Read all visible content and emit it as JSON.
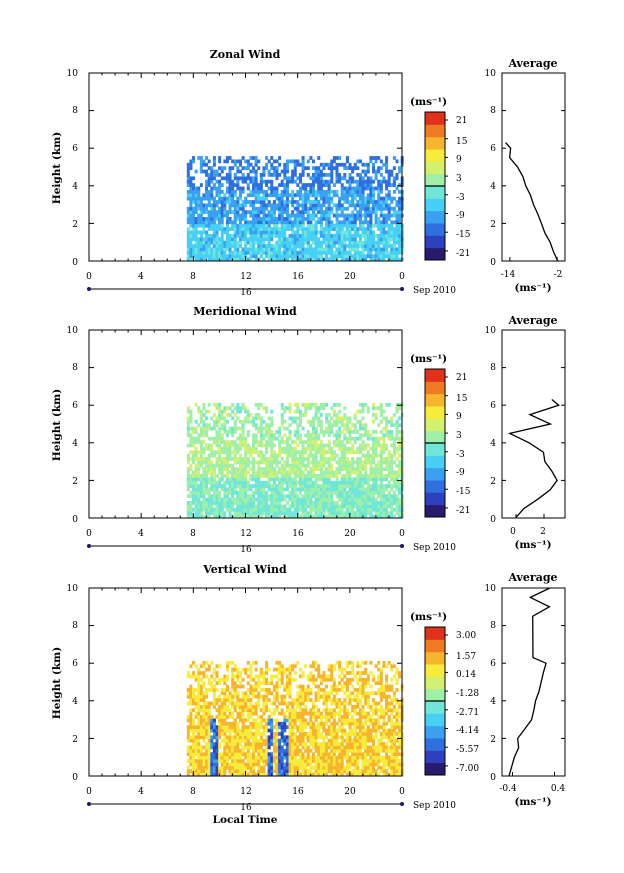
{
  "panels": [
    {
      "title": "Zonal Wind",
      "ylabel": "Height (km)",
      "yticks": [
        "0",
        "2",
        "4",
        "6",
        "8",
        "10"
      ],
      "xticks": [
        "0",
        "4",
        "8",
        "12",
        "16",
        "20",
        "0"
      ],
      "date_day": "16",
      "date_label": "Sep 2010",
      "cbar_unit": "(ms⁻¹)",
      "cbar_ticks": [
        "21",
        "15",
        "9",
        "3",
        "-3",
        "-9",
        "-15",
        "-21"
      ],
      "avg_title": "Average",
      "avg_yticks": [
        "0",
        "2",
        "4",
        "6",
        "8",
        "10"
      ],
      "avg_xticks": [
        "-14",
        "-2"
      ],
      "avg_xlabel": "(ms⁻¹)"
    },
    {
      "title": "Meridional Wind",
      "ylabel": "Height (km)",
      "yticks": [
        "0",
        "2",
        "4",
        "6",
        "8",
        "10"
      ],
      "xticks": [
        "0",
        "4",
        "8",
        "12",
        "16",
        "20",
        "0"
      ],
      "date_day": "16",
      "date_label": "Sep 2010",
      "cbar_unit": "(ms⁻¹)",
      "cbar_ticks": [
        "21",
        "15",
        "9",
        "3",
        "-3",
        "-9",
        "-15",
        "-21"
      ],
      "avg_title": "Average",
      "avg_yticks": [
        "0",
        "2",
        "4",
        "6",
        "8",
        "10"
      ],
      "avg_xticks": [
        "0",
        "2"
      ],
      "avg_xlabel": "(ms⁻¹)"
    },
    {
      "title": "Vertical Wind",
      "ylabel": "Height (km)",
      "yticks": [
        "0",
        "2",
        "4",
        "6",
        "8",
        "10"
      ],
      "xticks": [
        "0",
        "4",
        "8",
        "12",
        "16",
        "20",
        "0"
      ],
      "date_day": "16",
      "date_label": "Sep 2010",
      "cbar_unit": "(ms⁻¹)",
      "cbar_ticks": [
        "3.00",
        "1.57",
        "0.14",
        "-1.28",
        "-2.71",
        "-4.14",
        "-5.57",
        "-7.00"
      ],
      "avg_title": "Average",
      "avg_yticks": [
        "0",
        "2",
        "4",
        "6",
        "8",
        "10"
      ],
      "avg_xticks": [
        "-0.4",
        "0.4"
      ],
      "avg_xlabel": "(ms⁻¹)"
    }
  ],
  "bottom_xlabel": "Local Time",
  "colormap": [
    "#2a1a6e",
    "#2e3fbf",
    "#2f6fe0",
    "#3aa0f0",
    "#46d0f5",
    "#6fe6d8",
    "#9ef0a8",
    "#d4f070",
    "#f7ec3c",
    "#f7b52e",
    "#f07a22",
    "#e0321a"
  ],
  "chart_data": [
    {
      "type": "heatmap",
      "title": "Zonal Wind",
      "xlabel": "",
      "ylabel": "Height (km)",
      "xlim": [
        0,
        24
      ],
      "ylim": [
        0,
        10
      ],
      "color_range": [
        -24,
        24
      ],
      "data_extent_x": [
        7.5,
        24
      ],
      "data_extent_y": [
        0,
        5.5
      ],
      "typical_values": {
        "0-2 km": -6,
        "2-4 km": -10,
        "4-5.5 km": -13
      },
      "average_profile": {
        "xlim": [
          -16,
          0
        ],
        "x_ticks": [
          -14,
          -2
        ],
        "height": [
          0,
          0.5,
          1,
          1.5,
          2,
          2.5,
          3,
          3.5,
          4,
          4.5,
          5,
          5.5,
          6,
          6.3
        ],
        "value": [
          -2,
          -3,
          -4,
          -5,
          -6,
          -7,
          -8,
          -9,
          -10,
          -10.5,
          -12,
          -14,
          -14,
          -15
        ]
      }
    },
    {
      "type": "heatmap",
      "title": "Meridional Wind",
      "xlabel": "",
      "ylabel": "Height (km)",
      "xlim": [
        0,
        24
      ],
      "ylim": [
        0,
        10
      ],
      "color_range": [
        -24,
        24
      ],
      "data_extent_x": [
        7.5,
        24
      ],
      "data_extent_y": [
        0,
        6
      ],
      "typical_values": {
        "0-1 km": 0,
        "1-4 km": 3,
        "4-6 km": 2
      },
      "average_profile": {
        "xlim": [
          -1,
          3.5
        ],
        "x_ticks": [
          0,
          2
        ],
        "height": [
          0,
          0.5,
          1,
          1.5,
          2,
          2.5,
          3,
          3.5,
          4,
          4.5,
          5,
          5.5,
          6,
          6.3
        ],
        "value": [
          0,
          0.5,
          1.5,
          2.5,
          3.0,
          2.5,
          2.0,
          2.0,
          1.0,
          -0.5,
          2.5,
          1.0,
          3.0,
          2.5
        ]
      }
    },
    {
      "type": "heatmap",
      "title": "Vertical Wind",
      "xlabel": "Local Time",
      "ylabel": "Height (km)",
      "xlim": [
        0,
        24
      ],
      "ylim": [
        0,
        10
      ],
      "color_range": [
        -7,
        3
      ],
      "data_extent_x": [
        7.5,
        24
      ],
      "data_extent_y": [
        0,
        6
      ],
      "typical_values": {
        "background": 0.5,
        "downdraft columns": -6
      },
      "average_profile": {
        "xlim": [
          -0.6,
          0.6
        ],
        "x_ticks": [
          -0.4,
          0.4
        ],
        "height": [
          0,
          0.5,
          1,
          1.5,
          2,
          2.5,
          3,
          3.5,
          4,
          4.5,
          5,
          5.5,
          6,
          6.3,
          8.5,
          9,
          9.5,
          10
        ],
        "value": [
          -0.45,
          -0.4,
          -0.35,
          -0.3,
          -0.3,
          -0.15,
          -0.05,
          0.0,
          0.05,
          0.1,
          0.15,
          0.2,
          0.25,
          0.0,
          0.0,
          0.3,
          -0.05,
          0.3
        ]
      }
    }
  ]
}
